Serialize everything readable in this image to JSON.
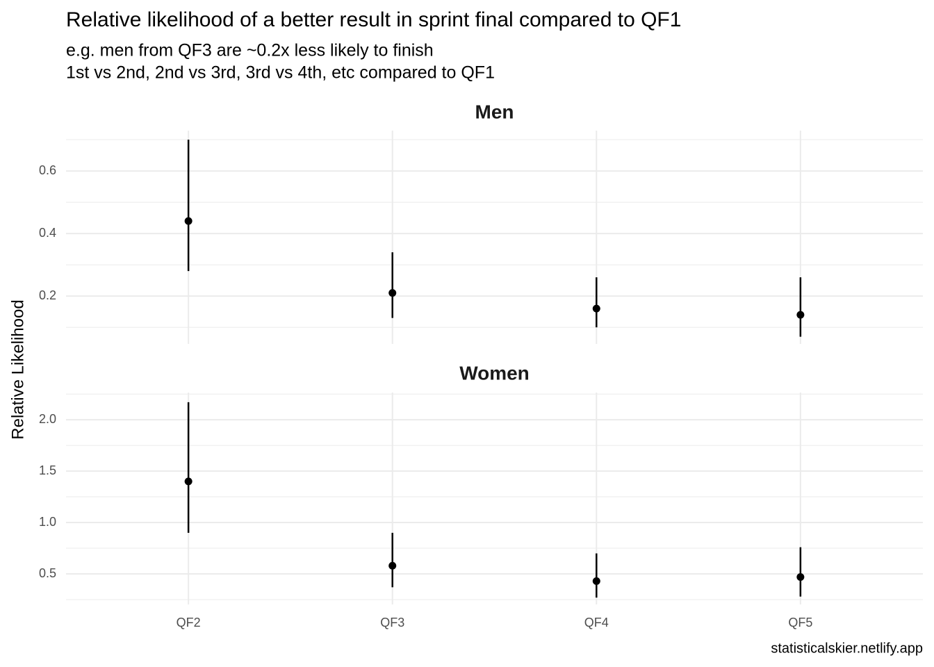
{
  "title": "Relative likelihood of a better result in sprint final compared to QF1",
  "subtitle": [
    "e.g. men from QF3 are ~0.2x less likely to finish",
    "1st vs 2nd, 2nd vs 3rd, 3rd vs 4th, etc compared to QF1"
  ],
  "y_label": "Relative Likelihood",
  "caption": "statisticalskier.netlify.app",
  "chart_data": [
    {
      "type": "pointrange",
      "title": "Men",
      "categories": [
        "QF2",
        "QF3",
        "QF4",
        "QF5"
      ],
      "values": [
        0.44,
        0.21,
        0.16,
        0.14
      ],
      "lower": [
        0.28,
        0.13,
        0.1,
        0.07
      ],
      "upper": [
        0.7,
        0.34,
        0.26,
        0.26
      ],
      "color": "#000000",
      "ylim": [
        0.047,
        0.729
      ],
      "yticks": [
        {
          "value": 0.2,
          "label": "0.2"
        },
        {
          "value": 0.4,
          "label": "0.4"
        },
        {
          "value": 0.6,
          "label": "0.6"
        }
      ],
      "minor_yticks": [
        0.1,
        0.3,
        0.5,
        0.7
      ],
      "grid": true
    },
    {
      "type": "pointrange",
      "title": "Women",
      "categories": [
        "QF2",
        "QF3",
        "QF4",
        "QF5"
      ],
      "values": [
        1.4,
        0.58,
        0.43,
        0.47
      ],
      "lower": [
        0.9,
        0.37,
        0.27,
        0.28
      ],
      "upper": [
        2.17,
        0.9,
        0.7,
        0.76
      ],
      "color": "#000000",
      "ylim": [
        0.203,
        2.264
      ],
      "yticks": [
        {
          "value": 0.5,
          "label": "0.5"
        },
        {
          "value": 1,
          "label": "1.0"
        },
        {
          "value": 1.5,
          "label": "1.5"
        },
        {
          "value": 2,
          "label": "2.0"
        }
      ],
      "minor_yticks": [
        0.25,
        0.75,
        1.25,
        1.75,
        2.25
      ],
      "grid": true
    }
  ]
}
